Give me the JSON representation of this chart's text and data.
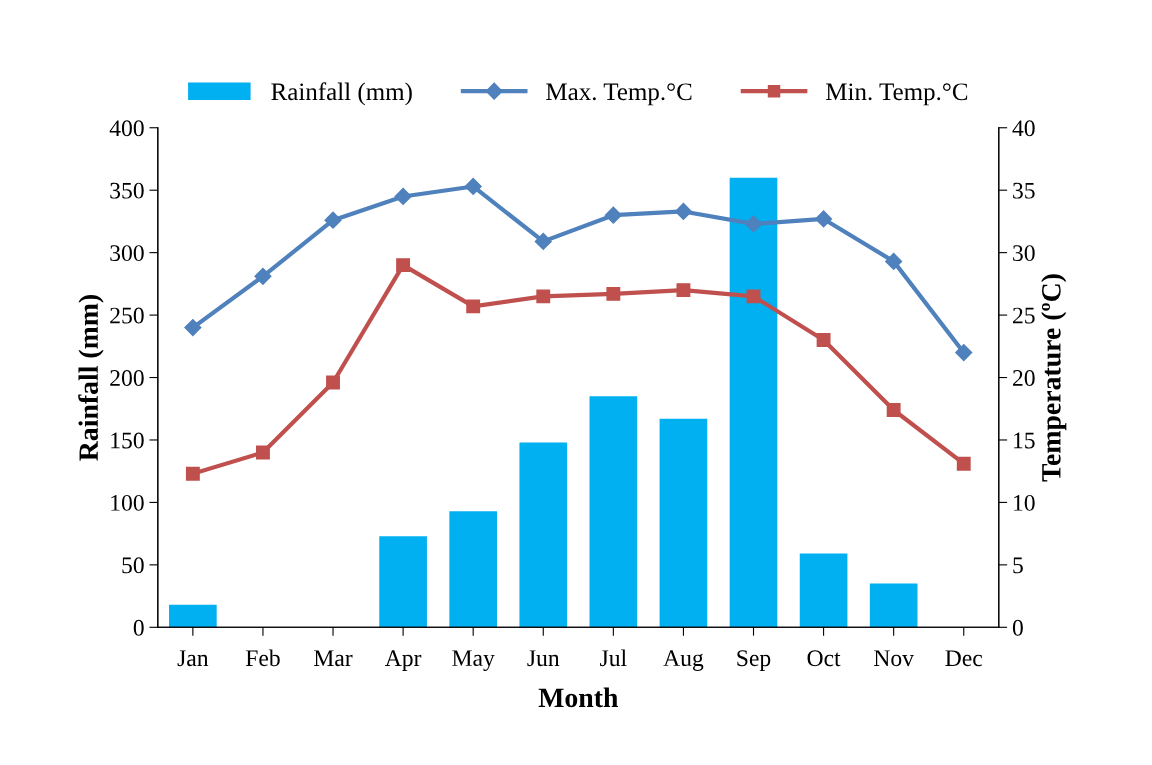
{
  "chart_data": {
    "type": "bar",
    "xlabel": "Month",
    "ylabel": "Rainfall (mm)",
    "y2label": "Temperature (ºC)",
    "categories": [
      "Jan",
      "Feb",
      "Mar",
      "Apr",
      "May",
      "Jun",
      "Jul",
      "Aug",
      "Sep",
      "Oct",
      "Nov",
      "Dec"
    ],
    "series": [
      {
        "name": "Rainfall (mm)",
        "color": "#00b0f0",
        "values": [
          18,
          0,
          0,
          73,
          93,
          148,
          185,
          167,
          360,
          59,
          35,
          0
        ]
      },
      {
        "name": "Max. Temp.°C",
        "type": "line",
        "axis": "y2",
        "marker": "diamond",
        "color": "#4f81bd",
        "values": [
          24.0,
          28.1,
          32.6,
          34.5,
          35.3,
          30.9,
          33.0,
          33.3,
          32.3,
          32.7,
          29.3,
          22.0
        ]
      },
      {
        "name": "Min. Temp.°C",
        "type": "line",
        "axis": "y2",
        "marker": "square",
        "color": "#c0504d",
        "values": [
          12.3,
          14.0,
          19.6,
          29.0,
          25.7,
          26.5,
          26.7,
          27.0,
          26.5,
          23.0,
          17.4,
          13.1
        ]
      }
    ],
    "ylim": [
      0,
      400
    ],
    "yticks": [
      0,
      50,
      100,
      150,
      200,
      250,
      300,
      350,
      400
    ],
    "y2lim": [
      0,
      40
    ],
    "y2ticks": [
      0,
      5,
      10,
      15,
      20,
      25,
      30,
      35,
      40
    ],
    "grid": false,
    "legend": "top",
    "line_style": "solid"
  }
}
